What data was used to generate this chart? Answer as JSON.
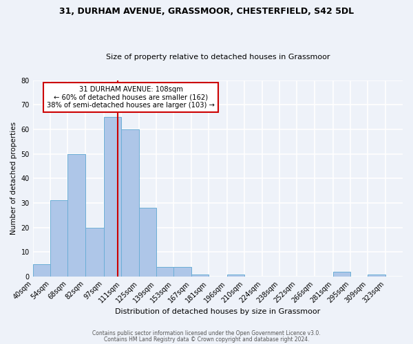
{
  "title": "31, DURHAM AVENUE, GRASSMOOR, CHESTERFIELD, S42 5DL",
  "subtitle": "Size of property relative to detached houses in Grassmoor",
  "xlabel": "Distribution of detached houses by size in Grassmoor",
  "ylabel": "Number of detached properties",
  "bar_labels": [
    "40sqm",
    "54sqm",
    "68sqm",
    "82sqm",
    "97sqm",
    "111sqm",
    "125sqm",
    "139sqm",
    "153sqm",
    "167sqm",
    "181sqm",
    "196sqm",
    "210sqm",
    "224sqm",
    "238sqm",
    "252sqm",
    "266sqm",
    "281sqm",
    "295sqm",
    "309sqm",
    "323sqm"
  ],
  "bar_values": [
    5,
    31,
    50,
    20,
    65,
    60,
    28,
    4,
    4,
    1,
    0,
    1,
    0,
    0,
    0,
    0,
    0,
    2,
    0,
    1,
    0
  ],
  "bar_color": "#aec6e8",
  "bar_edgecolor": "#6baed6",
  "vline_x": 108,
  "bin_edges": [
    40,
    54,
    68,
    82,
    97,
    111,
    125,
    139,
    153,
    167,
    181,
    196,
    210,
    224,
    238,
    252,
    266,
    281,
    295,
    309,
    323,
    337
  ],
  "annotation_title": "31 DURHAM AVENUE: 108sqm",
  "annotation_line1": "← 60% of detached houses are smaller (162)",
  "annotation_line2": "38% of semi-detached houses are larger (103) →",
  "box_color": "#cc0000",
  "ylim": [
    0,
    80
  ],
  "yticks": [
    0,
    10,
    20,
    30,
    40,
    50,
    60,
    70,
    80
  ],
  "footer1": "Contains HM Land Registry data © Crown copyright and database right 2024.",
  "footer2": "Contains public sector information licensed under the Open Government Licence v3.0.",
  "bg_color": "#eef2f9",
  "grid_color": "#ffffff"
}
